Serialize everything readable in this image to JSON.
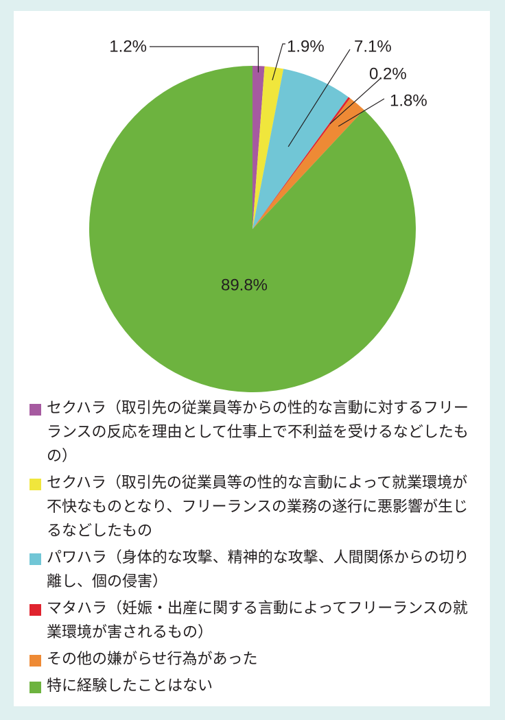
{
  "chart_data": {
    "type": "pie",
    "start_angle_deg": 0,
    "direction": "clockwise",
    "slices": [
      {
        "label": "セクハラ（取引先の従業員等からの性的な言動に対するフリーランスの反応を理由として仕事上で不利益を受けるなどしたもの）",
        "value": 1.2,
        "value_label": "1.2%",
        "color": "#a65aa0"
      },
      {
        "label": "セクハラ（取引先の従業員等の性的な言動によって就業環境が不快なものとなり、フリーランスの業務の遂行に悪影響が生じるなどしたもの",
        "value": 1.9,
        "value_label": "1.9%",
        "color": "#f0e63c"
      },
      {
        "label": "パワハラ（身体的な攻撃、精神的な攻撃、人間関係からの切り離し、個の侵害）",
        "value": 7.1,
        "value_label": "7.1%",
        "color": "#71c6d6"
      },
      {
        "label": "マタハラ（妊娠・出産に関する言動によってフリーランスの就業環境が害されるもの）",
        "value": 0.2,
        "value_label": "0.2%",
        "color": "#e0232e"
      },
      {
        "label": "その他の嫌がらせ行為があった",
        "value": 1.8,
        "value_label": "1.8%",
        "color": "#ee8a35"
      },
      {
        "label": "特に経験したことはない",
        "value": 89.8,
        "value_label": "89.8%",
        "color": "#6db33f"
      }
    ]
  }
}
